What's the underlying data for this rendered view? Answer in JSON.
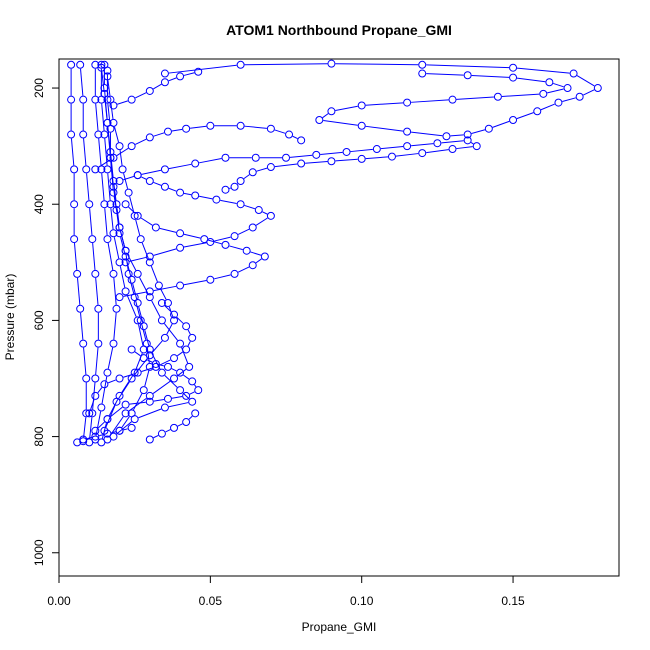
{
  "chart_data": {
    "type": "scatter",
    "title": "ATOM1 Northbound Propane_GMI",
    "xlabel": "Propane_GMI",
    "ylabel": "Pressure (mbar)",
    "xlim": [
      0,
      0.185
    ],
    "ylim": [
      1040,
      150
    ],
    "y_reversed": true,
    "x_ticks": [
      0,
      0.05,
      0.1,
      0.15
    ],
    "x_tick_labels": [
      "0.00",
      "0.05",
      "0.10",
      "0.15"
    ],
    "y_ticks": [
      200,
      400,
      600,
      800,
      1000
    ],
    "y_tick_labels": [
      "200",
      "400",
      "600",
      "800",
      "1000"
    ],
    "grid": false,
    "legend": "none",
    "marker": "open-circle",
    "color": "#0000ff",
    "series": [
      {
        "points": [
          [
            0.01,
            810
          ],
          [
            0.011,
            760
          ],
          [
            0.012,
            700
          ],
          [
            0.013,
            640
          ],
          [
            0.013,
            580
          ],
          [
            0.012,
            520
          ],
          [
            0.011,
            460
          ],
          [
            0.01,
            400
          ],
          [
            0.009,
            340
          ],
          [
            0.008,
            280
          ],
          [
            0.008,
            220
          ],
          [
            0.007,
            160
          ]
        ]
      },
      {
        "points": [
          [
            0.012,
            805
          ],
          [
            0.014,
            750
          ],
          [
            0.016,
            690
          ],
          [
            0.018,
            640
          ],
          [
            0.019,
            580
          ],
          [
            0.018,
            520
          ],
          [
            0.016,
            460
          ],
          [
            0.015,
            400
          ],
          [
            0.014,
            340
          ],
          [
            0.013,
            280
          ],
          [
            0.012,
            220
          ],
          [
            0.012,
            160
          ]
        ]
      },
      {
        "points": [
          [
            0.014,
            810
          ],
          [
            0.016,
            770
          ],
          [
            0.02,
            730
          ],
          [
            0.025,
            690
          ],
          [
            0.028,
            650
          ],
          [
            0.026,
            600
          ],
          [
            0.022,
            550
          ],
          [
            0.02,
            500
          ],
          [
            0.018,
            450
          ],
          [
            0.017,
            400
          ],
          [
            0.016,
            340
          ],
          [
            0.015,
            280
          ],
          [
            0.014,
            220
          ],
          [
            0.014,
            160
          ]
        ]
      },
      {
        "points": [
          [
            0.016,
            805
          ],
          [
            0.022,
            760
          ],
          [
            0.03,
            730
          ],
          [
            0.038,
            700
          ],
          [
            0.043,
            680
          ],
          [
            0.04,
            640
          ],
          [
            0.034,
            600
          ],
          [
            0.03,
            560
          ],
          [
            0.026,
            520
          ],
          [
            0.022,
            480
          ],
          [
            0.02,
            440
          ],
          [
            0.018,
            380
          ],
          [
            0.017,
            320
          ],
          [
            0.016,
            260
          ],
          [
            0.015,
            200
          ],
          [
            0.015,
            160
          ]
        ]
      },
      {
        "points": [
          [
            0.018,
            800
          ],
          [
            0.025,
            770
          ],
          [
            0.035,
            750
          ],
          [
            0.044,
            740
          ],
          [
            0.04,
            720
          ],
          [
            0.034,
            690
          ],
          [
            0.03,
            650
          ],
          [
            0.028,
            610
          ],
          [
            0.026,
            570
          ],
          [
            0.024,
            530
          ],
          [
            0.022,
            490
          ],
          [
            0.02,
            450
          ],
          [
            0.019,
            410
          ],
          [
            0.018,
            370
          ],
          [
            0.017,
            320
          ],
          [
            0.017,
            270
          ],
          [
            0.016,
            220
          ],
          [
            0.016,
            170
          ]
        ]
      },
      {
        "points": [
          [
            0.008,
            808
          ],
          [
            0.009,
            760
          ],
          [
            0.009,
            700
          ],
          [
            0.008,
            640
          ],
          [
            0.007,
            580
          ],
          [
            0.006,
            520
          ],
          [
            0.005,
            460
          ],
          [
            0.005,
            400
          ],
          [
            0.005,
            340
          ],
          [
            0.004,
            280
          ],
          [
            0.004,
            220
          ],
          [
            0.004,
            160
          ]
        ]
      },
      {
        "points": [
          [
            0.02,
            790
          ],
          [
            0.024,
            760
          ],
          [
            0.028,
            720
          ],
          [
            0.03,
            680
          ],
          [
            0.029,
            640
          ],
          [
            0.027,
            600
          ],
          [
            0.025,
            560
          ],
          [
            0.023,
            520
          ],
          [
            0.022,
            480
          ],
          [
            0.02,
            440
          ],
          [
            0.019,
            400
          ],
          [
            0.018,
            360
          ],
          [
            0.017,
            310
          ],
          [
            0.016,
            260
          ],
          [
            0.015,
            210
          ],
          [
            0.014,
            165
          ]
        ]
      },
      {
        "points": [
          [
            0.015,
            790
          ],
          [
            0.019,
            740
          ],
          [
            0.024,
            700
          ],
          [
            0.03,
            660
          ],
          [
            0.035,
            630
          ],
          [
            0.038,
            600
          ],
          [
            0.036,
            570
          ],
          [
            0.033,
            540
          ],
          [
            0.03,
            500
          ],
          [
            0.027,
            460
          ],
          [
            0.025,
            420
          ],
          [
            0.023,
            380
          ],
          [
            0.021,
            340
          ],
          [
            0.02,
            300
          ],
          [
            0.018,
            260
          ],
          [
            0.017,
            220
          ],
          [
            0.016,
            180
          ]
        ]
      },
      {
        "points": [
          [
            0.03,
            805
          ],
          [
            0.034,
            795
          ],
          [
            0.038,
            785
          ],
          [
            0.042,
            775
          ],
          [
            0.045,
            760
          ]
        ]
      },
      {
        "points": [
          [
            0.02,
            560
          ],
          [
            0.03,
            550
          ],
          [
            0.04,
            540
          ],
          [
            0.05,
            530
          ],
          [
            0.058,
            520
          ],
          [
            0.064,
            505
          ],
          [
            0.068,
            490
          ],
          [
            0.062,
            480
          ],
          [
            0.055,
            470
          ],
          [
            0.048,
            460
          ],
          [
            0.04,
            450
          ],
          [
            0.032,
            440
          ],
          [
            0.026,
            420
          ],
          [
            0.022,
            400
          ]
        ]
      },
      {
        "points": [
          [
            0.022,
            500
          ],
          [
            0.03,
            490
          ],
          [
            0.04,
            475
          ],
          [
            0.05,
            465
          ],
          [
            0.058,
            455
          ],
          [
            0.064,
            440
          ],
          [
            0.07,
            420
          ],
          [
            0.066,
            410
          ],
          [
            0.06,
            400
          ],
          [
            0.052,
            392
          ],
          [
            0.045,
            385
          ],
          [
            0.04,
            380
          ],
          [
            0.035,
            370
          ],
          [
            0.03,
            360
          ],
          [
            0.026,
            350
          ]
        ]
      },
      {
        "points": [
          [
            0.02,
            360
          ],
          [
            0.026,
            350
          ],
          [
            0.035,
            340
          ],
          [
            0.045,
            330
          ],
          [
            0.055,
            320
          ],
          [
            0.065,
            320
          ],
          [
            0.075,
            320
          ],
          [
            0.085,
            315
          ],
          [
            0.095,
            310
          ],
          [
            0.105,
            305
          ],
          [
            0.115,
            300
          ],
          [
            0.125,
            295
          ],
          [
            0.135,
            290
          ],
          [
            0.138,
            300
          ],
          [
            0.13,
            305
          ],
          [
            0.12,
            312
          ],
          [
            0.11,
            318
          ],
          [
            0.1,
            322
          ],
          [
            0.09,
            326
          ],
          [
            0.08,
            330
          ],
          [
            0.07,
            336
          ],
          [
            0.064,
            345
          ],
          [
            0.06,
            360
          ],
          [
            0.058,
            370
          ],
          [
            0.055,
            375
          ]
        ]
      },
      {
        "points": [
          [
            0.035,
            175
          ],
          [
            0.06,
            160
          ],
          [
            0.09,
            158
          ],
          [
            0.12,
            160
          ],
          [
            0.15,
            165
          ],
          [
            0.17,
            175
          ],
          [
            0.178,
            200
          ],
          [
            0.172,
            215
          ],
          [
            0.165,
            225
          ],
          [
            0.158,
            240
          ],
          [
            0.15,
            255
          ],
          [
            0.142,
            270
          ],
          [
            0.135,
            280
          ],
          [
            0.128,
            283
          ],
          [
            0.115,
            275
          ],
          [
            0.1,
            265
          ],
          [
            0.086,
            255
          ],
          [
            0.09,
            240
          ],
          [
            0.1,
            230
          ],
          [
            0.115,
            225
          ],
          [
            0.13,
            220
          ],
          [
            0.145,
            215
          ],
          [
            0.16,
            210
          ],
          [
            0.168,
            200
          ],
          [
            0.162,
            190
          ],
          [
            0.15,
            182
          ],
          [
            0.135,
            178
          ],
          [
            0.12,
            175
          ]
        ]
      },
      {
        "points": [
          [
            0.012,
            340
          ],
          [
            0.018,
            320
          ],
          [
            0.024,
            300
          ],
          [
            0.03,
            285
          ],
          [
            0.036,
            275
          ],
          [
            0.042,
            270
          ],
          [
            0.05,
            265
          ],
          [
            0.06,
            265
          ],
          [
            0.07,
            270
          ],
          [
            0.076,
            280
          ],
          [
            0.08,
            290
          ]
        ]
      },
      {
        "points": [
          [
            0.018,
            230
          ],
          [
            0.024,
            220
          ],
          [
            0.03,
            205
          ],
          [
            0.035,
            190
          ],
          [
            0.04,
            180
          ],
          [
            0.046,
            172
          ]
        ]
      },
      {
        "points": [
          [
            0.01,
            760
          ],
          [
            0.012,
            730
          ],
          [
            0.015,
            710
          ],
          [
            0.02,
            700
          ],
          [
            0.026,
            690
          ],
          [
            0.032,
            680
          ],
          [
            0.038,
            665
          ],
          [
            0.042,
            650
          ],
          [
            0.044,
            630
          ],
          [
            0.042,
            610
          ],
          [
            0.038,
            590
          ],
          [
            0.034,
            570
          ]
        ]
      },
      {
        "points": [
          [
            0.012,
            790
          ],
          [
            0.016,
            770
          ],
          [
            0.022,
            745
          ],
          [
            0.03,
            740
          ],
          [
            0.036,
            735
          ],
          [
            0.042,
            730
          ],
          [
            0.046,
            720
          ],
          [
            0.044,
            705
          ],
          [
            0.04,
            690
          ],
          [
            0.036,
            680
          ],
          [
            0.032,
            675
          ],
          [
            0.028,
            665
          ],
          [
            0.024,
            650
          ]
        ]
      },
      {
        "points": [
          [
            0.006,
            810
          ],
          [
            0.008,
            805
          ],
          [
            0.012,
            800
          ],
          [
            0.016,
            795
          ],
          [
            0.02,
            790
          ],
          [
            0.024,
            785
          ]
        ]
      }
    ]
  }
}
